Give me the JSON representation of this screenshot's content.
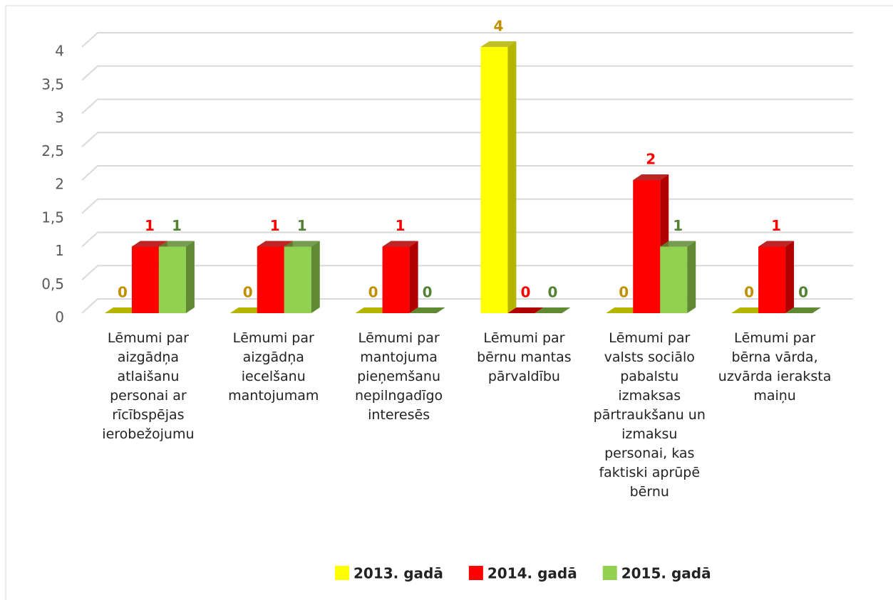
{
  "chart_data": {
    "type": "bar3d",
    "categories": [
      "Lēmumi par aizgādņa atlaišanu personai ar rīcībspējas ierobežojumu",
      "Lēmumi par aizgādņa iecelšanu mantojumam",
      "Lēmumi par mantojuma pieņemšanu nepilngadīgo interesēs",
      "Lēmumi par bērnu mantas pārvaldību",
      "Lēmumi par valsts sociālo pabalstu izmaksas pārtraukšanu un izmaksu personai, kas faktiski aprūpē bērnu",
      "Lēmumi par bērna vārda, uzvārda ieraksta maiņu"
    ],
    "series": [
      {
        "name": "2013. gadā",
        "color": "#ffff00",
        "side_color": "#b5b500",
        "label_color": "#c09000",
        "values": [
          0,
          0,
          0,
          4,
          0,
          0
        ]
      },
      {
        "name": "2014. gadā",
        "color": "#ff0000",
        "side_color": "#b00000",
        "label_color": "#ff0000",
        "values": [
          1,
          1,
          1,
          0,
          2,
          1
        ]
      },
      {
        "name": "2015. gadā",
        "color": "#92d050",
        "side_color": "#5f8a33",
        "label_color": "#548235",
        "values": [
          1,
          1,
          0,
          0,
          1,
          0
        ]
      }
    ],
    "ylim": [
      0,
      4
    ],
    "yticks": [
      0,
      {
        "value": 0.5,
        "label": "0,5"
      },
      1,
      {
        "value": 1.5,
        "label": "1,5"
      },
      2,
      {
        "value": 2.5,
        "label": "2,5"
      },
      3,
      {
        "value": 3.5,
        "label": "3,5"
      },
      4
    ],
    "grid": true,
    "legend": "bottom"
  }
}
